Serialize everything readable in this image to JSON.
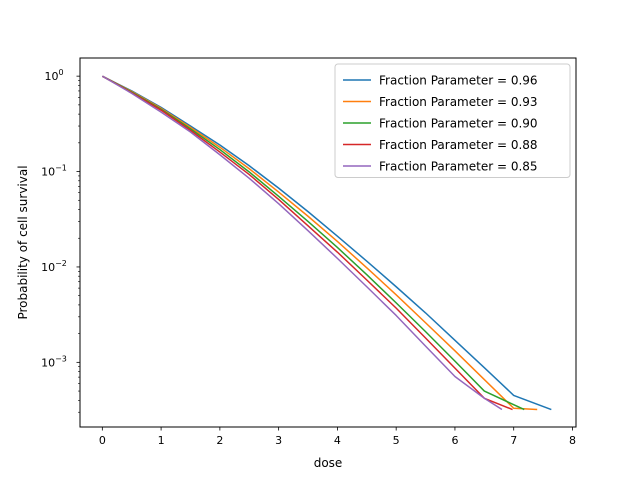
{
  "chart_data": {
    "type": "line",
    "title": "",
    "xlabel": "dose",
    "ylabel": "Probability of cell survival",
    "xlim": [
      -0.38,
      8.06
    ],
    "ylim": [
      0.00021,
      1.55
    ],
    "yscale": "log",
    "grid": false,
    "legend_position": "top-right",
    "x_ticks": [
      0,
      1,
      2,
      3,
      4,
      5,
      6,
      7,
      8
    ],
    "x_tick_labels": [
      "0",
      "1",
      "2",
      "3",
      "4",
      "5",
      "6",
      "7",
      "8"
    ],
    "y_ticks": [
      0.001,
      0.01,
      0.1,
      1
    ],
    "y_tick_mantissa": "10",
    "y_tick_exponents": [
      "−3",
      "−2",
      "−1",
      "0"
    ],
    "series": [
      {
        "name": "Fraction Parameter = 0.96",
        "color": "#1f77b4",
        "x": [
          0,
          0.5,
          1,
          1.5,
          2,
          2.5,
          3,
          3.5,
          4,
          4.5,
          5,
          5.5,
          6,
          6.5,
          7,
          7.64
        ],
        "y": [
          1.0,
          0.7,
          0.47,
          0.3,
          0.19,
          0.115,
          0.067,
          0.038,
          0.021,
          0.0115,
          0.0062,
          0.0033,
          0.0017,
          0.00088,
          0.00045,
          0.00032
        ]
      },
      {
        "name": "Fraction Parameter = 0.93",
        "color": "#ff7f0e",
        "x": [
          0,
          0.5,
          1,
          1.5,
          2,
          2.5,
          3,
          3.5,
          4,
          4.5,
          5,
          5.5,
          6,
          6.5,
          7,
          7.4
        ],
        "y": [
          1.0,
          0.69,
          0.46,
          0.29,
          0.18,
          0.107,
          0.061,
          0.034,
          0.0185,
          0.0098,
          0.0051,
          0.0026,
          0.00132,
          0.00066,
          0.00033,
          0.00032
        ]
      },
      {
        "name": "Fraction Parameter = 0.90",
        "color": "#2ca02c",
        "x": [
          0,
          0.5,
          1,
          1.5,
          2,
          2.5,
          3,
          3.5,
          4,
          4.5,
          5,
          5.5,
          6,
          6.5,
          7,
          7.18
        ],
        "y": [
          1.0,
          0.68,
          0.45,
          0.28,
          0.17,
          0.099,
          0.055,
          0.03,
          0.016,
          0.0083,
          0.0042,
          0.0021,
          0.00103,
          0.0005,
          0.00036,
          0.00032
        ]
      },
      {
        "name": "Fraction Parameter = 0.88",
        "color": "#d62728",
        "x": [
          0,
          0.5,
          1,
          1.5,
          2,
          2.5,
          3,
          3.5,
          4,
          4.5,
          5,
          5.5,
          6,
          6.5,
          6.98
        ],
        "y": [
          1.0,
          0.67,
          0.44,
          0.27,
          0.16,
          0.093,
          0.051,
          0.027,
          0.0143,
          0.0073,
          0.0037,
          0.0018,
          0.00087,
          0.00042,
          0.00032
        ]
      },
      {
        "name": "Fraction Parameter = 0.85",
        "color": "#9467bd",
        "x": [
          0,
          0.5,
          1,
          1.5,
          2,
          2.5,
          3,
          3.5,
          4,
          4.5,
          5,
          5.5,
          6,
          6.5,
          6.8
        ],
        "y": [
          1.0,
          0.66,
          0.42,
          0.26,
          0.15,
          0.085,
          0.046,
          0.024,
          0.0123,
          0.0062,
          0.0031,
          0.00148,
          0.00071,
          0.00042,
          0.00032
        ]
      }
    ]
  }
}
